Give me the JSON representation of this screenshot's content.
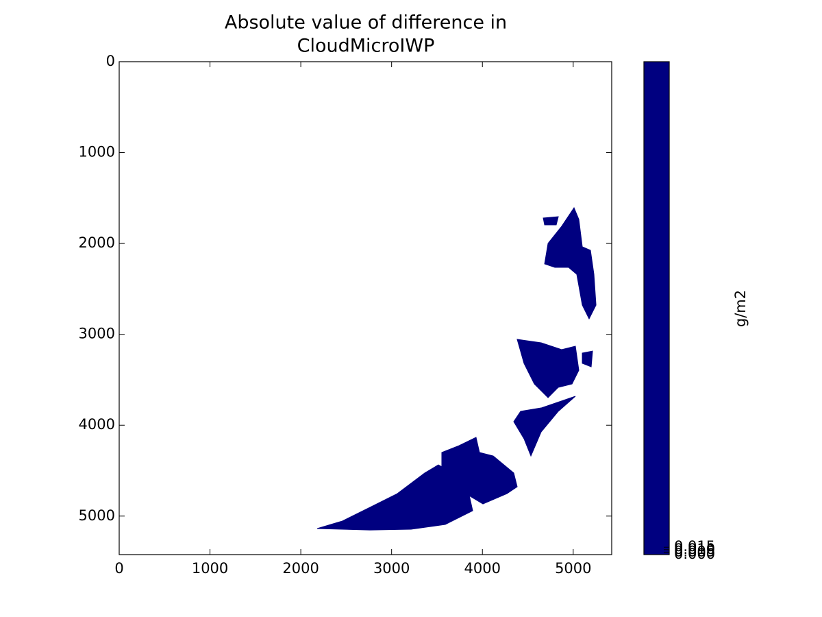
{
  "chart_data": {
    "type": "image",
    "title": [
      "Absolute value of difference in",
      "CloudMicroIWP"
    ],
    "xlim": [
      0,
      5424
    ],
    "ylim": [
      5424,
      0
    ],
    "xticks": [
      0,
      1000,
      2000,
      3000,
      4000,
      5000
    ],
    "yticks": [
      0,
      1000,
      2000,
      3000,
      4000,
      5000
    ],
    "color": "#000080",
    "regions": [
      {
        "x": [
          2180,
          2459,
          2761,
          3063,
          3365,
          3515,
          3817,
          3893,
          3591,
          3214,
          2761
        ],
        "y": [
          5137,
          5054,
          4904,
          4753,
          4526,
          4436,
          4602,
          4941,
          5092,
          5145,
          5153
        ]
      },
      {
        "x": [
          3553,
          3742,
          3930,
          3968,
          4119,
          4345,
          4383,
          4270,
          4006,
          3817,
          3666,
          3553
        ],
        "y": [
          4300,
          4225,
          4134,
          4300,
          4338,
          4526,
          4677,
          4753,
          4866,
          4753,
          4602,
          4451
        ]
      },
      {
        "x": [
          4421,
          4647,
          5024,
          4836,
          4647,
          4534,
          4458,
          4345
        ],
        "y": [
          3847,
          3810,
          3681,
          3847,
          4074,
          4338,
          4149,
          3961
        ]
      },
      {
        "x": [
          4383,
          4647,
          4873,
          5024,
          5062,
          4987,
          4836,
          4723,
          4572,
          4458
        ],
        "y": [
          3055,
          3093,
          3168,
          3131,
          3395,
          3546,
          3583,
          3697,
          3546,
          3319
        ]
      },
      {
        "x": [
          5009,
          5062,
          5100,
          5190,
          5228,
          5251,
          5175,
          5100,
          5039,
          4949,
          4798,
          4685,
          4723,
          4873
        ],
        "y": [
          1607,
          1735,
          2037,
          2075,
          2339,
          2678,
          2829,
          2678,
          2339,
          2263,
          2263,
          2225,
          1999,
          1811
        ]
      },
      {
        "x": [
          4670,
          4836,
          4813,
          4685
        ],
        "y": [
          1720,
          1705,
          1795,
          1795
        ]
      },
      {
        "x": [
          5100,
          5213,
          5198,
          5100
        ],
        "y": [
          3206,
          3184,
          3357,
          3319
        ]
      }
    ],
    "colorbar": {
      "label": "g/m2",
      "color": "#000080",
      "clim": [
        0,
        1
      ],
      "ticks": [
        {
          "value": 0,
          "label": "0.000"
        },
        {
          "value": 0.005,
          "label": "0.005"
        },
        {
          "value": 0.01,
          "label": "0.010"
        },
        {
          "value": 0.015,
          "label": "0.015"
        }
      ]
    }
  }
}
